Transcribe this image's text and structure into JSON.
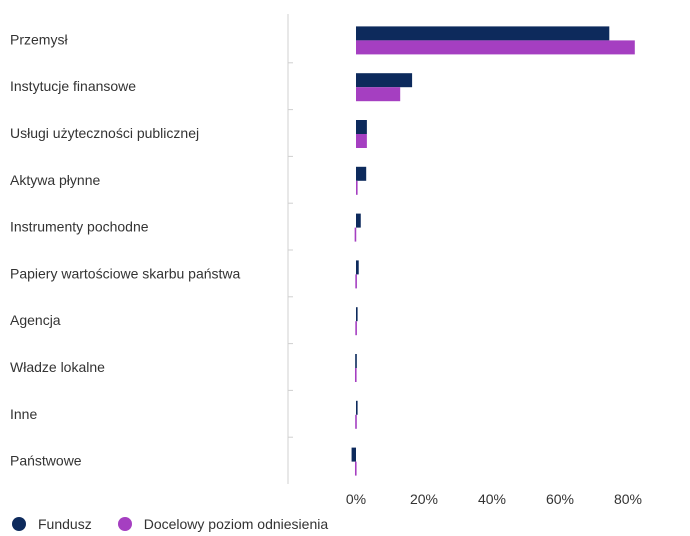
{
  "chart_data": {
    "type": "bar",
    "orientation": "horizontal",
    "categories": [
      "Przemysł",
      "Instytucje finansowe",
      "Usługi użyteczności publicznej",
      "Aktywa płynne",
      "Instrumenty pochodne",
      "Papiery wartościowe skarbu państwa",
      "Agencja",
      "Władze lokalne",
      "Inne",
      "Państwowe"
    ],
    "series": [
      {
        "name": "Fundusz",
        "color": "#0d2a5c",
        "values": [
          74.5,
          16.5,
          3.2,
          3.0,
          1.4,
          0.8,
          0.3,
          0.0,
          0.2,
          -1.3
        ]
      },
      {
        "name": "Docelowy poziom odniesienia",
        "color": "#a53fc1",
        "values": [
          82.0,
          13.0,
          3.2,
          0.4,
          -0.4,
          -0.2,
          -0.2,
          -0.3,
          0.0,
          -0.3
        ]
      }
    ],
    "xlim": [
      -20,
      100
    ],
    "xticks": [
      "0%",
      "20%",
      "40%",
      "60%",
      "80%"
    ],
    "xtick_values": [
      0,
      20,
      40,
      60,
      80
    ],
    "grid": false,
    "legend_position": "bottom-left"
  }
}
